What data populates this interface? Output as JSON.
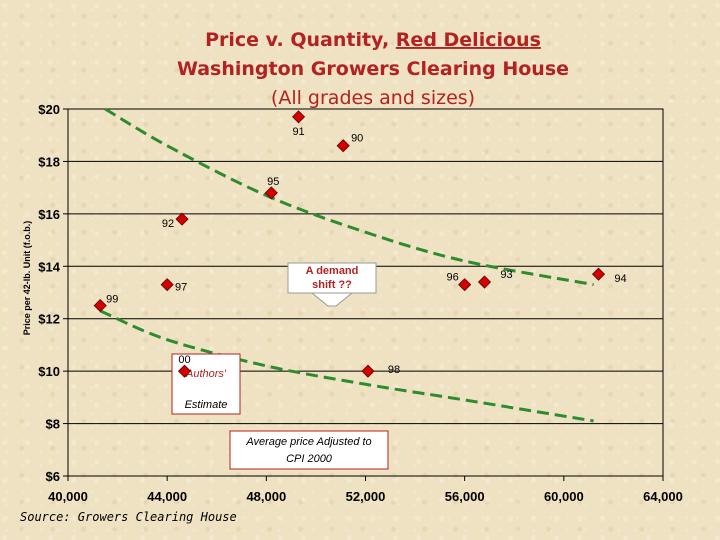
{
  "chart_data": {
    "type": "scatter",
    "title_line1_prefix": "Price v. Quantity, ",
    "title_line1_underlined": "Red Delicious",
    "title_line2": "Washington Growers Clearing House",
    "subtitle": "(All grades and sizes)",
    "ylabel": "Price per 42-lb. Unit (f.o.b.)",
    "source": "Source: Growers Clearing House",
    "xlim": [
      40000,
      64000
    ],
    "ylim": [
      6,
      20
    ],
    "x_ticks": [
      40000,
      44000,
      48000,
      52000,
      56000,
      60000,
      64000
    ],
    "x_tick_labels": [
      "40,000",
      "44,000",
      "48,000",
      "52,000",
      "56,000",
      "60,000",
      "64,000"
    ],
    "y_ticks": [
      6,
      8,
      10,
      12,
      14,
      16,
      18,
      20
    ],
    "y_tick_labels": [
      "$6",
      "$8",
      "$10",
      "$12",
      "$14",
      "$16",
      "$18",
      "$20"
    ],
    "grid": "horizontal",
    "marker_color": "#d40000",
    "curve_color": "#2e8b2e",
    "points": [
      {
        "label": "91",
        "x": 49300,
        "y": 19.7
      },
      {
        "label": "90",
        "x": 51100,
        "y": 18.6
      },
      {
        "label": "95",
        "x": 48200,
        "y": 16.8
      },
      {
        "label": "92",
        "x": 44600,
        "y": 15.8
      },
      {
        "label": "97",
        "x": 44000,
        "y": 13.3
      },
      {
        "label": "99",
        "x": 41300,
        "y": 12.5
      },
      {
        "label": "96",
        "x": 56000,
        "y": 13.3
      },
      {
        "label": "93",
        "x": 56800,
        "y": 13.4
      },
      {
        "label": "94",
        "x": 61400,
        "y": 13.7
      },
      {
        "label": "00",
        "x": 44700,
        "y": 10.0
      },
      {
        "label": "98",
        "x": 52100,
        "y": 10.0
      }
    ],
    "curves": [
      {
        "x": [
          41500,
          44000,
          48000,
          52000,
          56000,
          61200
        ],
        "y": [
          20.0,
          18.6,
          16.7,
          15.3,
          14.2,
          13.3
        ]
      },
      {
        "x": [
          41300,
          44000,
          48000,
          52000,
          56000,
          61200
        ],
        "y": [
          12.3,
          11.2,
          10.2,
          9.5,
          8.9,
          8.1
        ]
      }
    ],
    "annotations": {
      "demand_shift": [
        "A demand",
        "shift ??"
      ],
      "authors_estimate": [
        "Authors'",
        "Estimate"
      ],
      "cpi_adjusted": [
        "Average price Adjusted to",
        "CPI 2000"
      ]
    }
  }
}
